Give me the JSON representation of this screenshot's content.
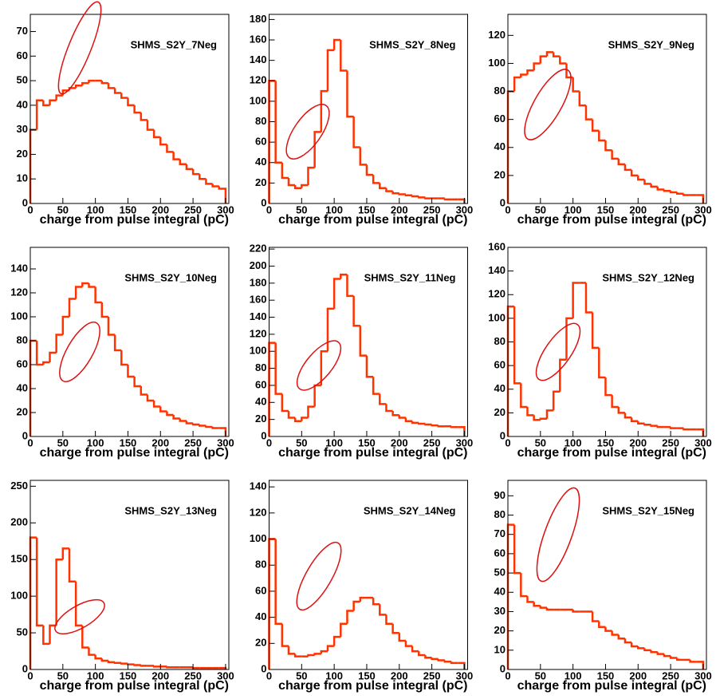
{
  "chart_data": [
    {
      "type": "histogram",
      "title": "SHMS_S2Y_7Neg",
      "x_label": "charge from pulse integral (pC)",
      "color": "#ff3300",
      "bins": [
        0,
        10,
        20,
        30,
        40,
        50,
        60,
        70,
        80,
        90,
        100,
        110,
        120,
        130,
        140,
        150,
        160,
        170,
        180,
        190,
        200,
        210,
        220,
        230,
        240,
        250,
        260,
        270,
        280,
        290,
        300
      ],
      "values": [
        30,
        42,
        40,
        42,
        44,
        46,
        47,
        48,
        49,
        50,
        50,
        49,
        47,
        45,
        43,
        40,
        37,
        34,
        30,
        27,
        24,
        21,
        18,
        16,
        14,
        12,
        10,
        8,
        7,
        6
      ],
      "xlim": [
        0,
        305
      ],
      "ylim": [
        0,
        77
      ],
      "xticks": [
        0,
        50,
        100,
        150,
        200,
        250,
        300
      ],
      "yticks": [
        0,
        10,
        20,
        30,
        40,
        50,
        60,
        70
      ]
    },
    {
      "type": "histogram",
      "title": "SHMS_S2Y_8Neg",
      "x_label": "charge from pulse integral (pC)",
      "color": "#ff3300",
      "bins": [
        0,
        10,
        20,
        30,
        40,
        50,
        60,
        70,
        80,
        90,
        100,
        110,
        120,
        130,
        140,
        150,
        160,
        170,
        180,
        190,
        200,
        210,
        220,
        230,
        240,
        250,
        260,
        270,
        280,
        290,
        300
      ],
      "values": [
        120,
        40,
        25,
        18,
        15,
        18,
        35,
        70,
        110,
        150,
        160,
        130,
        85,
        55,
        38,
        28,
        20,
        15,
        12,
        10,
        9,
        8,
        7,
        6,
        5,
        5,
        5,
        4,
        4,
        4
      ],
      "xlim": [
        0,
        305
      ],
      "ylim": [
        0,
        185
      ],
      "xticks": [
        0,
        50,
        100,
        150,
        200,
        250,
        300
      ],
      "yticks": [
        0,
        20,
        40,
        60,
        80,
        100,
        120,
        140,
        160,
        180
      ]
    },
    {
      "type": "histogram",
      "title": "SHMS_S2Y_9Neg",
      "x_label": "charge from pulse integral (pC)",
      "color": "#ff3300",
      "bins": [
        0,
        10,
        20,
        30,
        40,
        50,
        60,
        70,
        80,
        90,
        100,
        110,
        120,
        130,
        140,
        150,
        160,
        170,
        180,
        190,
        200,
        210,
        220,
        230,
        240,
        250,
        260,
        270,
        280,
        290,
        300
      ],
      "values": [
        80,
        90,
        92,
        95,
        100,
        105,
        108,
        105,
        100,
        90,
        80,
        70,
        60,
        52,
        45,
        38,
        32,
        28,
        24,
        20,
        17,
        14,
        12,
        10,
        9,
        8,
        7,
        6,
        6,
        6
      ],
      "xlim": [
        0,
        305
      ],
      "ylim": [
        0,
        135
      ],
      "xticks": [
        0,
        50,
        100,
        150,
        200,
        250,
        300
      ],
      "yticks": [
        0,
        20,
        40,
        60,
        80,
        100,
        120
      ]
    },
    {
      "type": "histogram",
      "title": "SHMS_S2Y_10Neg",
      "x_label": "charge from pulse integral (pC)",
      "color": "#ff3300",
      "bins": [
        0,
        10,
        20,
        30,
        40,
        50,
        60,
        70,
        80,
        90,
        100,
        110,
        120,
        130,
        140,
        150,
        160,
        170,
        180,
        190,
        200,
        210,
        220,
        230,
        240,
        250,
        260,
        270,
        280,
        290,
        300
      ],
      "values": [
        80,
        60,
        62,
        70,
        85,
        100,
        115,
        125,
        128,
        125,
        112,
        100,
        85,
        72,
        60,
        50,
        42,
        35,
        30,
        25,
        21,
        18,
        15,
        13,
        11,
        10,
        9,
        8,
        7,
        7
      ],
      "xlim": [
        0,
        305
      ],
      "ylim": [
        0,
        158
      ],
      "xticks": [
        0,
        50,
        100,
        150,
        200,
        250,
        300
      ],
      "yticks": [
        0,
        20,
        40,
        60,
        80,
        100,
        120,
        140
      ]
    },
    {
      "type": "histogram",
      "title": "SHMS_S2Y_11Neg",
      "x_label": "charge from pulse integral (pC)",
      "color": "#ff3300",
      "bins": [
        0,
        10,
        20,
        30,
        40,
        50,
        60,
        70,
        80,
        90,
        100,
        110,
        120,
        130,
        140,
        150,
        160,
        170,
        180,
        190,
        200,
        210,
        220,
        230,
        240,
        250,
        260,
        270,
        280,
        290,
        300
      ],
      "values": [
        110,
        50,
        30,
        22,
        18,
        22,
        35,
        60,
        100,
        150,
        185,
        190,
        165,
        130,
        95,
        70,
        50,
        38,
        30,
        25,
        22,
        18,
        16,
        15,
        14,
        13,
        12,
        12,
        11,
        11
      ],
      "xlim": [
        0,
        305
      ],
      "ylim": [
        0,
        222
      ],
      "xticks": [
        0,
        50,
        100,
        150,
        200,
        250,
        300
      ],
      "yticks": [
        0,
        20,
        40,
        60,
        80,
        100,
        120,
        140,
        160,
        180,
        200,
        220
      ]
    },
    {
      "type": "histogram",
      "title": "SHMS_S2Y_12Neg",
      "x_label": "charge from pulse integral (pC)",
      "color": "#ff3300",
      "bins": [
        0,
        10,
        20,
        30,
        40,
        50,
        60,
        70,
        80,
        90,
        100,
        110,
        120,
        130,
        140,
        150,
        160,
        170,
        180,
        190,
        200,
        210,
        220,
        230,
        240,
        250,
        260,
        270,
        280,
        290,
        300
      ],
      "values": [
        110,
        45,
        25,
        18,
        14,
        15,
        22,
        38,
        65,
        100,
        130,
        130,
        105,
        75,
        50,
        35,
        25,
        20,
        16,
        13,
        11,
        10,
        9,
        8,
        8,
        7,
        7,
        6,
        6,
        6
      ],
      "xlim": [
        0,
        305
      ],
      "ylim": [
        0,
        160
      ],
      "xticks": [
        0,
        50,
        100,
        150,
        200,
        250,
        300
      ],
      "yticks": [
        0,
        20,
        40,
        60,
        80,
        100,
        120,
        140,
        160
      ]
    },
    {
      "type": "histogram",
      "title": "SHMS_S2Y_13Neg",
      "x_label": "charge from pulse integral (pC)",
      "color": "#ff3300",
      "bins": [
        0,
        10,
        20,
        30,
        40,
        50,
        60,
        70,
        80,
        90,
        100,
        110,
        120,
        130,
        140,
        150,
        160,
        170,
        180,
        190,
        200,
        210,
        220,
        230,
        240,
        250,
        260,
        270,
        280,
        290,
        300
      ],
      "values": [
        180,
        60,
        35,
        60,
        150,
        165,
        120,
        60,
        30,
        20,
        15,
        12,
        10,
        9,
        8,
        7,
        6,
        5,
        5,
        4,
        4,
        3,
        3,
        3,
        3,
        2,
        2,
        2,
        2,
        2
      ],
      "xlim": [
        0,
        305
      ],
      "ylim": [
        0,
        258
      ],
      "xticks": [
        0,
        50,
        100,
        150,
        200,
        250,
        300
      ],
      "yticks": [
        0,
        50,
        100,
        150,
        200,
        250
      ]
    },
    {
      "type": "histogram",
      "title": "SHMS_S2Y_14Neg",
      "x_label": "charge from pulse integral (pC)",
      "color": "#ff3300",
      "bins": [
        0,
        10,
        20,
        30,
        40,
        50,
        60,
        70,
        80,
        90,
        100,
        110,
        120,
        130,
        140,
        150,
        160,
        170,
        180,
        190,
        200,
        210,
        220,
        230,
        240,
        250,
        260,
        270,
        280,
        290,
        300
      ],
      "values": [
        100,
        35,
        18,
        12,
        10,
        10,
        11,
        12,
        14,
        18,
        25,
        35,
        45,
        52,
        55,
        55,
        50,
        42,
        35,
        28,
        22,
        18,
        14,
        11,
        9,
        8,
        7,
        6,
        5,
        5
      ],
      "xlim": [
        0,
        305
      ],
      "ylim": [
        0,
        145
      ],
      "xticks": [
        0,
        50,
        100,
        150,
        200,
        250,
        300
      ],
      "yticks": [
        0,
        20,
        40,
        60,
        80,
        100,
        120,
        140
      ]
    },
    {
      "type": "histogram",
      "title": "SHMS_S2Y_15Neg",
      "x_label": "charge from pulse integral (pC)",
      "color": "#ff3300",
      "bins": [
        0,
        10,
        20,
        30,
        40,
        50,
        60,
        70,
        80,
        90,
        100,
        110,
        120,
        130,
        140,
        150,
        160,
        170,
        180,
        190,
        200,
        210,
        220,
        230,
        240,
        250,
        260,
        270,
        280,
        290,
        300
      ],
      "values": [
        75,
        50,
        38,
        35,
        33,
        32,
        31,
        31,
        31,
        31,
        30,
        30,
        30,
        25,
        22,
        20,
        18,
        16,
        14,
        12,
        11,
        10,
        9,
        8,
        7,
        6,
        5,
        5,
        4,
        4
      ],
      "xlim": [
        0,
        305
      ],
      "ylim": [
        0,
        98
      ],
      "xticks": [
        0,
        50,
        100,
        150,
        200,
        250,
        300
      ],
      "yticks": [
        0,
        10,
        20,
        30,
        40,
        50,
        60,
        70,
        80,
        90
      ]
    }
  ]
}
